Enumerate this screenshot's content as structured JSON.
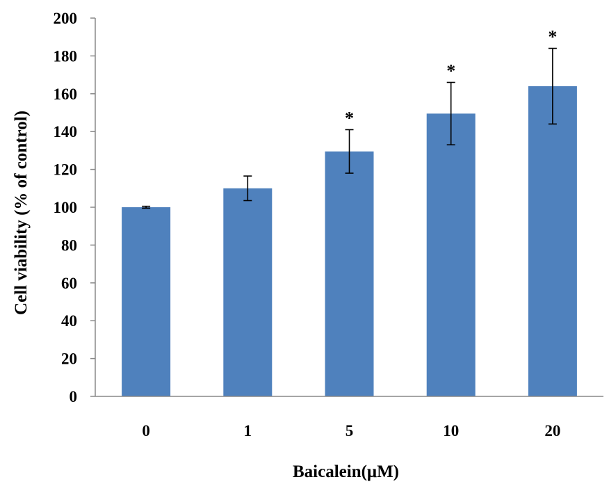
{
  "chart_data": {
    "type": "bar",
    "title": "",
    "xlabel": "Baicalein(μM)",
    "ylabel": "Cell viability  (% of control)",
    "categories": [
      "0",
      "1",
      "5",
      "10",
      "20"
    ],
    "values": [
      100,
      110,
      129.5,
      149.5,
      164
    ],
    "error": [
      0.5,
      6.5,
      11.5,
      16.5,
      20
    ],
    "annotations": [
      "",
      "",
      "*",
      "*",
      "*"
    ],
    "ylim": [
      0,
      200
    ],
    "yticks": [
      0,
      20,
      40,
      60,
      80,
      100,
      120,
      140,
      160,
      180,
      200
    ],
    "grid": false,
    "legend": "none",
    "bar_color": "#4f81bd"
  }
}
